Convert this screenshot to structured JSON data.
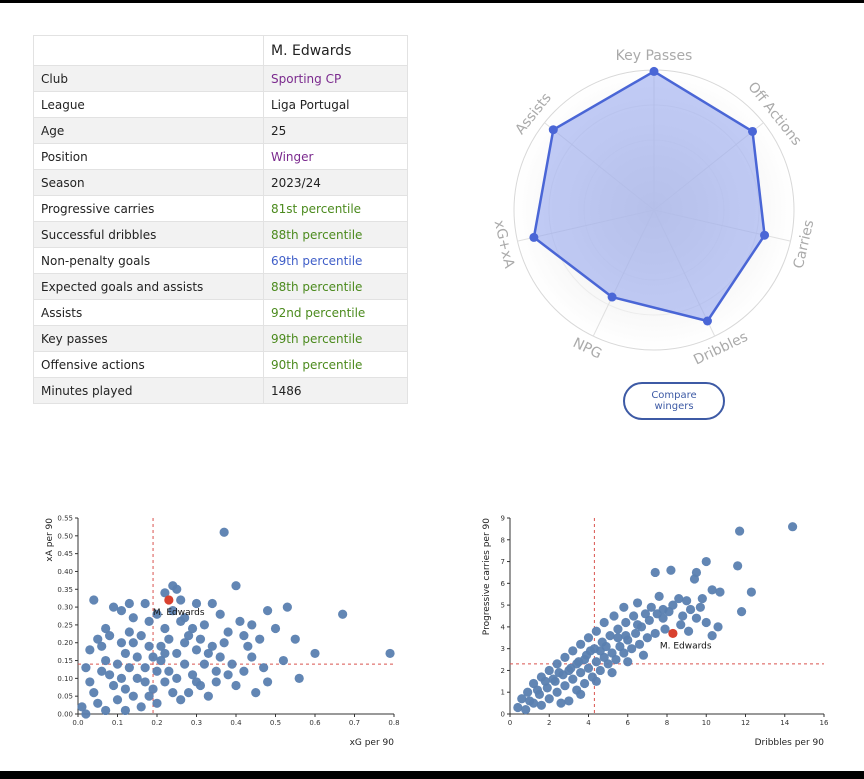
{
  "player_table": {
    "header": {
      "label": "",
      "value": "M. Edwards"
    },
    "rows": [
      {
        "label": "Club",
        "value": "Sporting CP",
        "color": "#7b2a8e"
      },
      {
        "label": "League",
        "value": "Liga Portugal",
        "color": "#222222"
      },
      {
        "label": "Age",
        "value": "25",
        "color": "#222222"
      },
      {
        "label": "Position",
        "value": "Winger",
        "color": "#7b2a8e"
      },
      {
        "label": "Season",
        "value": "2023/24",
        "color": "#222222"
      },
      {
        "label": "Progressive carries",
        "value": "81st percentile",
        "color": "#4b8a1d"
      },
      {
        "label": "Successful dribbles",
        "value": "88th percentile",
        "color": "#4b8a1d"
      },
      {
        "label": "Non-penalty goals",
        "value": "69th percentile",
        "color": "#3f5ec8"
      },
      {
        "label": "Expected goals and assists",
        "value": "88th percentile",
        "color": "#4b8a1d"
      },
      {
        "label": "Assists",
        "value": "92nd percentile",
        "color": "#4b8a1d"
      },
      {
        "label": "Key passes",
        "value": "99th percentile",
        "color": "#4b8a1d"
      },
      {
        "label": "Offensive actions",
        "value": "90th percentile",
        "color": "#4b8a1d"
      },
      {
        "label": "Minutes played",
        "value": "1486",
        "color": "#222222"
      }
    ]
  },
  "compare_button": {
    "label": "Compare wingers"
  },
  "chart_data": [
    {
      "type": "radar",
      "axes": [
        "Key Passes",
        "Off Actions",
        "Carries",
        "Dribbles",
        "NPG",
        "xG+xA",
        "Assists"
      ],
      "values": [
        99,
        90,
        81,
        88,
        69,
        88,
        92
      ],
      "range": [
        0,
        100
      ],
      "colors": {
        "line": "#4a66d6",
        "fill": "#8fa3ee",
        "axis_label": "#aaaaaa"
      }
    },
    {
      "type": "scatter",
      "xlabel": "xG per 90",
      "ylabel": "xA per 90",
      "xlim": [
        0,
        0.8
      ],
      "ylim": [
        0,
        0.55
      ],
      "xticks": [
        "0.0",
        "0.1",
        "0.2",
        "0.3",
        "0.4",
        "0.5",
        "0.6",
        "0.7",
        "0.8"
      ],
      "yticks": [
        "0.00",
        "0.05",
        "0.10",
        "0.15",
        "0.20",
        "0.25",
        "0.30",
        "0.35",
        "0.40",
        "0.45",
        "0.50",
        "0.55"
      ],
      "reference_lines": {
        "x": 0.19,
        "y": 0.14
      },
      "highlight": {
        "name": "M. Edwards",
        "x": 0.23,
        "y": 0.32
      },
      "points": [
        [
          0.37,
          0.51
        ],
        [
          0.24,
          0.36
        ],
        [
          0.25,
          0.35
        ],
        [
          0.22,
          0.34
        ],
        [
          0.4,
          0.36
        ],
        [
          0.04,
          0.32
        ],
        [
          0.17,
          0.31
        ],
        [
          0.13,
          0.31
        ],
        [
          0.26,
          0.32
        ],
        [
          0.3,
          0.31
        ],
        [
          0.34,
          0.31
        ],
        [
          0.48,
          0.29
        ],
        [
          0.53,
          0.3
        ],
        [
          0.67,
          0.28
        ],
        [
          0.36,
          0.28
        ],
        [
          0.41,
          0.26
        ],
        [
          0.44,
          0.25
        ],
        [
          0.5,
          0.24
        ],
        [
          0.42,
          0.22
        ],
        [
          0.46,
          0.21
        ],
        [
          0.55,
          0.21
        ],
        [
          0.6,
          0.17
        ],
        [
          0.79,
          0.17
        ],
        [
          0.09,
          0.3
        ],
        [
          0.11,
          0.29
        ],
        [
          0.2,
          0.28
        ],
        [
          0.27,
          0.27
        ],
        [
          0.32,
          0.25
        ],
        [
          0.38,
          0.23
        ],
        [
          0.52,
          0.15
        ],
        [
          0.44,
          0.16
        ],
        [
          0.56,
          0.1
        ],
        [
          0.48,
          0.09
        ],
        [
          0.4,
          0.08
        ],
        [
          0.35,
          0.12
        ],
        [
          0.3,
          0.18
        ],
        [
          0.28,
          0.22
        ],
        [
          0.22,
          0.24
        ],
        [
          0.18,
          0.26
        ],
        [
          0.14,
          0.27
        ],
        [
          0.07,
          0.24
        ],
        [
          0.05,
          0.21
        ],
        [
          0.03,
          0.18
        ],
        [
          0.02,
          0.13
        ],
        [
          0.03,
          0.09
        ],
        [
          0.04,
          0.06
        ],
        [
          0.05,
          0.03
        ],
        [
          0.07,
          0.01
        ],
        [
          0.1,
          0.04
        ],
        [
          0.12,
          0.07
        ],
        [
          0.15,
          0.1
        ],
        [
          0.17,
          0.13
        ],
        [
          0.19,
          0.16
        ],
        [
          0.21,
          0.19
        ],
        [
          0.23,
          0.21
        ],
        [
          0.25,
          0.17
        ],
        [
          0.27,
          0.14
        ],
        [
          0.29,
          0.11
        ],
        [
          0.31,
          0.08
        ],
        [
          0.33,
          0.05
        ],
        [
          0.2,
          0.03
        ],
        [
          0.16,
          0.02
        ],
        [
          0.12,
          0.01
        ],
        [
          0.08,
          0.11
        ],
        [
          0.1,
          0.14
        ],
        [
          0.12,
          0.17
        ],
        [
          0.14,
          0.2
        ],
        [
          0.16,
          0.22
        ],
        [
          0.18,
          0.19
        ],
        [
          0.2,
          0.12
        ],
        [
          0.22,
          0.09
        ],
        [
          0.24,
          0.06
        ],
        [
          0.26,
          0.04
        ],
        [
          0.28,
          0.06
        ],
        [
          0.3,
          0.09
        ],
        [
          0.32,
          0.14
        ],
        [
          0.34,
          0.19
        ],
        [
          0.36,
          0.16
        ],
        [
          0.38,
          0.11
        ],
        [
          0.42,
          0.12
        ],
        [
          0.45,
          0.06
        ],
        [
          0.13,
          0.13
        ],
        [
          0.11,
          0.1
        ],
        [
          0.09,
          0.08
        ],
        [
          0.07,
          0.15
        ],
        [
          0.06,
          0.19
        ],
        [
          0.08,
          0.22
        ],
        [
          0.15,
          0.16
        ],
        [
          0.17,
          0.09
        ],
        [
          0.19,
          0.07
        ],
        [
          0.21,
          0.15
        ],
        [
          0.23,
          0.12
        ],
        [
          0.25,
          0.1
        ],
        [
          0.27,
          0.2
        ],
        [
          0.29,
          0.24
        ],
        [
          0.31,
          0.21
        ],
        [
          0.33,
          0.17
        ],
        [
          0.26,
          0.26
        ],
        [
          0.24,
          0.29
        ],
        [
          0.14,
          0.05
        ],
        [
          0.01,
          0.02
        ],
        [
          0.02,
          0.0
        ],
        [
          0.06,
          0.12
        ],
        [
          0.18,
          0.05
        ],
        [
          0.22,
          0.17
        ],
        [
          0.11,
          0.2
        ],
        [
          0.13,
          0.23
        ],
        [
          0.35,
          0.09
        ],
        [
          0.39,
          0.14
        ],
        [
          0.43,
          0.19
        ],
        [
          0.47,
          0.13
        ],
        [
          0.37,
          0.2
        ]
      ]
    },
    {
      "type": "scatter",
      "xlabel": "Dribbles per 90",
      "ylabel": "Progressive carries per 90",
      "xlim": [
        0,
        16
      ],
      "ylim": [
        0,
        9
      ],
      "xticks": [
        "0",
        "2",
        "4",
        "6",
        "8",
        "10",
        "12",
        "14",
        "16"
      ],
      "yticks": [
        "0",
        "1",
        "2",
        "3",
        "4",
        "5",
        "6",
        "7",
        "8",
        "9"
      ],
      "reference_lines": {
        "x": 4.3,
        "y": 2.3
      },
      "highlight": {
        "name": "M. Edwards",
        "x": 8.3,
        "y": 3.7
      },
      "points": [
        [
          14.4,
          8.6
        ],
        [
          11.7,
          8.4
        ],
        [
          10.0,
          7.0
        ],
        [
          9.5,
          6.5
        ],
        [
          9.4,
          6.2
        ],
        [
          8.2,
          6.6
        ],
        [
          7.4,
          6.5
        ],
        [
          11.6,
          6.8
        ],
        [
          10.3,
          5.7
        ],
        [
          10.7,
          5.6
        ],
        [
          12.3,
          5.6
        ],
        [
          11.8,
          4.7
        ],
        [
          9.8,
          5.3
        ],
        [
          9.0,
          5.2
        ],
        [
          8.6,
          5.3
        ],
        [
          8.3,
          5.0
        ],
        [
          7.8,
          4.8
        ],
        [
          7.2,
          4.9
        ],
        [
          6.5,
          5.1
        ],
        [
          5.8,
          4.9
        ],
        [
          5.3,
          4.5
        ],
        [
          4.8,
          4.2
        ],
        [
          4.4,
          3.8
        ],
        [
          4.0,
          3.5
        ],
        [
          3.6,
          3.2
        ],
        [
          3.2,
          2.9
        ],
        [
          2.8,
          2.6
        ],
        [
          2.4,
          2.3
        ],
        [
          2.0,
          2.0
        ],
        [
          1.6,
          1.7
        ],
        [
          1.2,
          1.4
        ],
        [
          0.9,
          1.0
        ],
        [
          0.6,
          0.7
        ],
        [
          0.4,
          0.3
        ],
        [
          0.8,
          0.2
        ],
        [
          1.2,
          0.5
        ],
        [
          1.5,
          0.9
        ],
        [
          1.9,
          1.2
        ],
        [
          2.3,
          1.5
        ],
        [
          2.7,
          1.8
        ],
        [
          3.1,
          2.1
        ],
        [
          3.5,
          2.4
        ],
        [
          3.9,
          2.7
        ],
        [
          4.3,
          3.0
        ],
        [
          4.7,
          3.3
        ],
        [
          5.1,
          3.6
        ],
        [
          5.5,
          3.9
        ],
        [
          5.9,
          4.2
        ],
        [
          6.3,
          4.5
        ],
        [
          6.7,
          4.0
        ],
        [
          7.1,
          4.3
        ],
        [
          7.5,
          4.6
        ],
        [
          7.9,
          3.9
        ],
        [
          8.7,
          4.1
        ],
        [
          9.1,
          3.8
        ],
        [
          9.5,
          4.4
        ],
        [
          10.0,
          4.2
        ],
        [
          10.6,
          4.0
        ],
        [
          10.3,
          3.6
        ],
        [
          6.0,
          3.4
        ],
        [
          6.4,
          3.7
        ],
        [
          5.6,
          3.1
        ],
        [
          5.2,
          2.8
        ],
        [
          4.8,
          2.6
        ],
        [
          4.4,
          2.4
        ],
        [
          4.0,
          2.1
        ],
        [
          3.6,
          1.9
        ],
        [
          3.2,
          1.6
        ],
        [
          2.8,
          1.3
        ],
        [
          2.4,
          1.0
        ],
        [
          2.0,
          0.7
        ],
        [
          1.6,
          0.4
        ],
        [
          3.0,
          0.6
        ],
        [
          3.4,
          1.1
        ],
        [
          3.8,
          1.4
        ],
        [
          4.2,
          1.7
        ],
        [
          4.6,
          2.0
        ],
        [
          5.0,
          2.3
        ],
        [
          5.4,
          2.5
        ],
        [
          5.8,
          2.8
        ],
        [
          6.2,
          3.0
        ],
        [
          6.6,
          3.2
        ],
        [
          7.0,
          3.5
        ],
        [
          7.4,
          3.7
        ],
        [
          6.8,
          2.7
        ],
        [
          6.0,
          2.4
        ],
        [
          5.2,
          1.9
        ],
        [
          4.4,
          1.5
        ],
        [
          3.6,
          0.9
        ],
        [
          2.6,
          0.5
        ],
        [
          7.8,
          4.4
        ],
        [
          8.1,
          4.7
        ],
        [
          6.9,
          4.6
        ],
        [
          5.5,
          3.5
        ],
        [
          4.6,
          2.9
        ],
        [
          3.8,
          2.5
        ],
        [
          3.0,
          2.0
        ],
        [
          2.2,
          1.6
        ],
        [
          1.4,
          1.1
        ],
        [
          1.0,
          0.6
        ],
        [
          6.5,
          4.1
        ],
        [
          7.6,
          5.4
        ],
        [
          8.8,
          4.5
        ],
        [
          9.2,
          4.8
        ],
        [
          9.7,
          4.9
        ],
        [
          5.9,
          3.6
        ],
        [
          4.9,
          3.1
        ],
        [
          4.1,
          2.9
        ],
        [
          3.4,
          2.3
        ],
        [
          2.5,
          1.9
        ],
        [
          1.8,
          1.5
        ]
      ]
    }
  ]
}
